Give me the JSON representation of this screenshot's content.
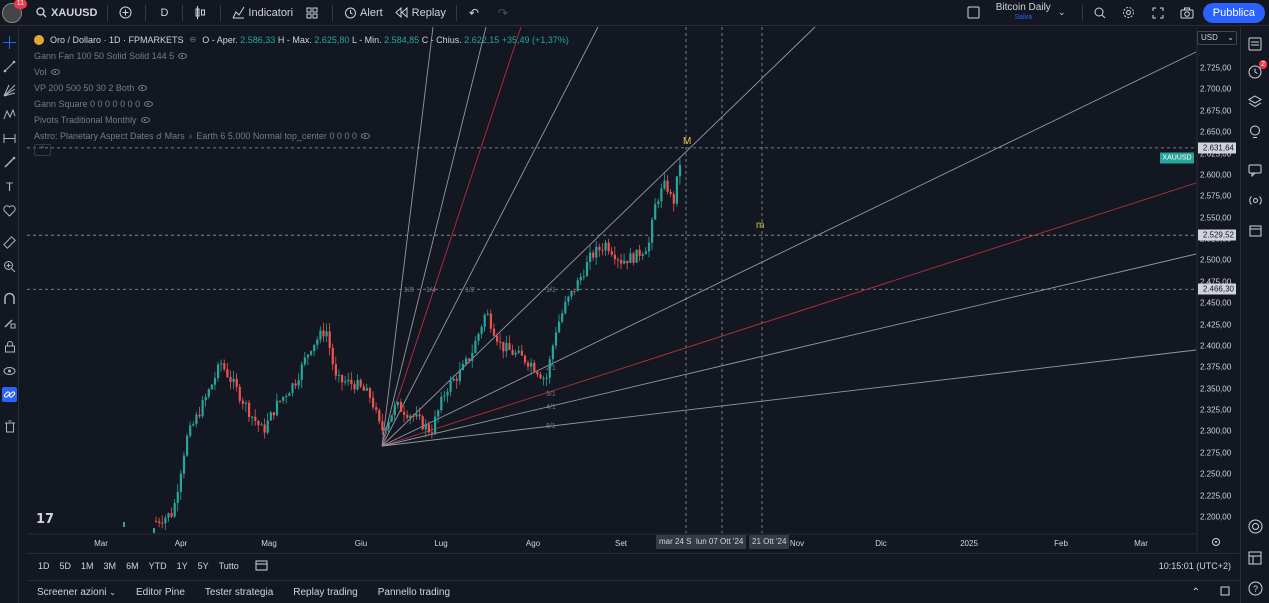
{
  "topbar": {
    "avatar_badge": "11",
    "symbol": "XAUUSD",
    "interval": "D",
    "indicators": "Indicatori",
    "alert": "Alert",
    "replay": "Replay",
    "layout_name": "Bitcoin Daily",
    "layout_status": "Salva",
    "publish": "Pubblica"
  },
  "legend": {
    "title": "Oro / Dollaro · 1D · FPMARKETS",
    "open_label": "O - Aper.",
    "open": "2.586,33",
    "high_label": "H - Max.",
    "high": "2.625,80",
    "low_label": "L - Min.",
    "low": "2.584,85",
    "close_label": "C - Chius.",
    "close": "2.622,15",
    "change": "+35,49 (+1,37%)",
    "indicators": [
      "Gann Fan 100 50 Solid Solid 144 5",
      "Vol",
      "VP 200 500 50 30 2 Both",
      "Gann Square 0 0 0 0 0 0 0",
      "Pivots Traditional Monthly",
      "Astro: Planetary Aspect Dates ☌ Mars ♁ Earth 6 5.000 Normal top_center 0 0 0 0"
    ]
  },
  "price_axis": {
    "currency": "USD",
    "ticks": [
      "2.725,00",
      "2.700,00",
      "2.675,00",
      "2.650,00",
      "2.625,00",
      "2.600,00",
      "2.575,00",
      "2.550,00",
      "2.525,00",
      "2.500,00",
      "2.475,00",
      "2.450,00",
      "2.425,00",
      "2.400,00",
      "2.375,00",
      "2.350,00",
      "2.325,00",
      "2.300,00",
      "2.275,00",
      "2.250,00",
      "2.225,00",
      "2.200,00"
    ],
    "labels": [
      {
        "text": "2.631,64",
        "bg": "#d1d4dc",
        "fg": "#131722"
      },
      {
        "text": "2.529,52",
        "bg": "#d1d4dc",
        "fg": "#131722"
      },
      {
        "text": "2.466,30",
        "bg": "#d1d4dc",
        "fg": "#131722"
      }
    ],
    "symbol_tag": "XAUUSD",
    "symbol_tag_bg": "#26a69a"
  },
  "time_axis": {
    "ticks": [
      "Mar",
      "Apr",
      "Mag",
      "Giu",
      "Lug",
      "Ago",
      "Set",
      "Nov",
      "Dic",
      "2025",
      "Feb",
      "Mar"
    ],
    "labels": [
      "mar 24 S",
      "lun 07 Ott '24",
      "21 Ott '24"
    ]
  },
  "chart_data": {
    "type": "candlestick",
    "symbol": "XAUUSD",
    "ylim": [
      2185,
      2745
    ],
    "markers": [
      "M",
      "m"
    ],
    "gann_ratios": [
      "1/8",
      "1/4",
      "1/2",
      "1/1",
      "2/1",
      "3/1",
      "4/1",
      "8/1"
    ],
    "colors": {
      "up": "#26a69a",
      "down": "#ef5350",
      "fan_red": "#b2323a",
      "fan_gray": "#9598a1"
    }
  },
  "range_bar": {
    "ranges": [
      "1D",
      "5D",
      "1M",
      "3M",
      "6M",
      "YTD",
      "1Y",
      "5Y",
      "Tutto"
    ],
    "clock": "10:15:01 (UTC+2)"
  },
  "bottom_bar": {
    "tabs": [
      "Screener azioni",
      "Editor Pine",
      "Tester strategia",
      "Replay trading",
      "Pannello trading"
    ]
  }
}
